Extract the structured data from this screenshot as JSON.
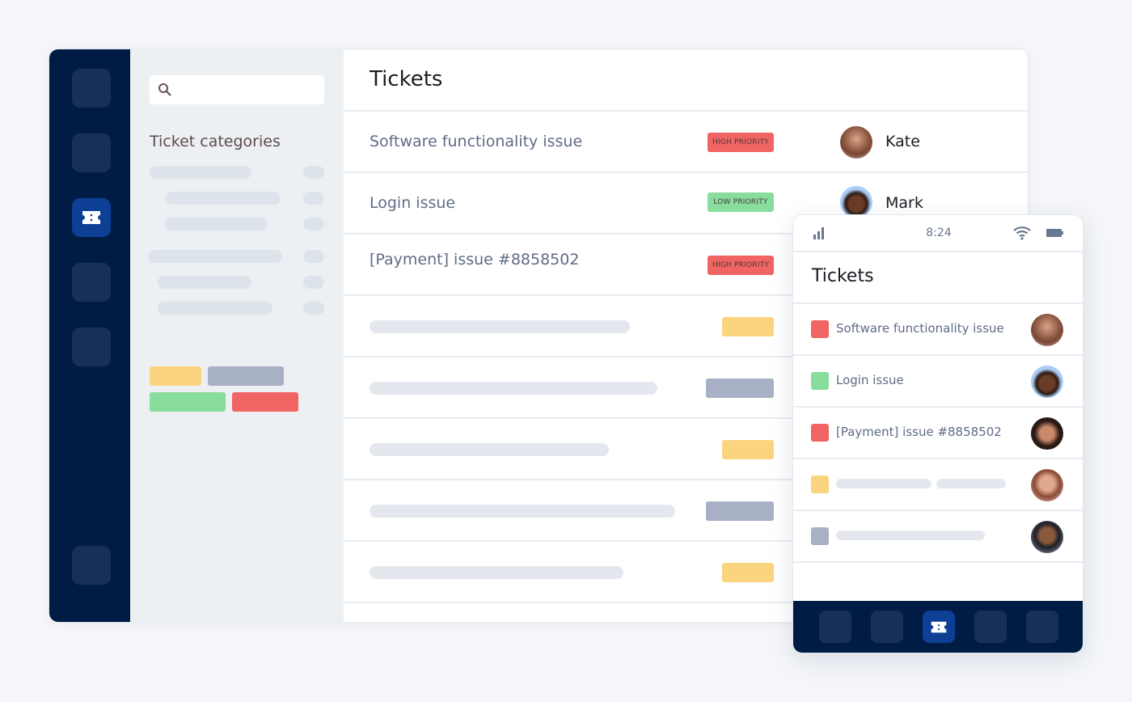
{
  "main": {
    "title": "Tickets",
    "tickets": [
      {
        "title": "Software functionality issue",
        "priority": "HIGH PRIORITY",
        "assignee": "Kate"
      },
      {
        "title": "Login issue",
        "priority": "LOW PRIORITY",
        "assignee": "Mark"
      },
      {
        "title": "[Payment] issue #8858502",
        "priority": "HIGH PRIORITY",
        "assignee": ""
      }
    ]
  },
  "categories": {
    "title": "Ticket categories",
    "search_placeholder": ""
  },
  "phone": {
    "time": "8:24",
    "title": "Tickets",
    "tickets": [
      {
        "title": "Software functionality issue"
      },
      {
        "title": "Login issue"
      },
      {
        "title": "[Payment] issue #8858502"
      }
    ]
  },
  "colors": {
    "navy": "#001c45",
    "active": "#0d3f94",
    "high": "#f06463",
    "low": "#88dc9c",
    "medium": "#fbd47f",
    "neutral": "#a7b0c4"
  }
}
